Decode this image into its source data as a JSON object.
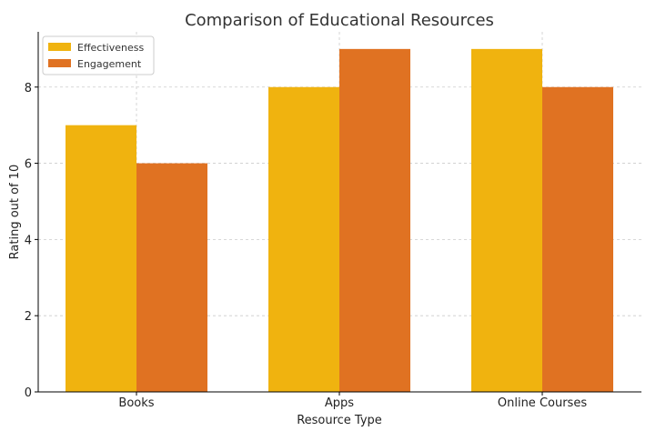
{
  "chart_data": {
    "type": "bar",
    "title": "Comparison of Educational Resources",
    "xlabel": "Resource Type",
    "ylabel": "Rating out of 10",
    "categories": [
      "Books",
      "Apps",
      "Online Courses"
    ],
    "series": [
      {
        "name": "Effectiveness",
        "values": [
          7,
          8,
          9
        ],
        "color": "#f0b30f"
      },
      {
        "name": "Engagement",
        "values": [
          6,
          9,
          8
        ],
        "color": "#e07222"
      }
    ],
    "ylim": [
      0,
      9.45
    ],
    "yticks": [
      0,
      2,
      4,
      6,
      8
    ],
    "grid": true,
    "legend_position": "top-left"
  }
}
